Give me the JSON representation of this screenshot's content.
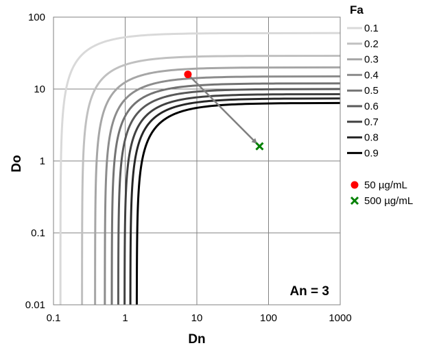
{
  "chart_data": {
    "type": "line",
    "title": "",
    "xlabel": "Dn",
    "ylabel": "Do",
    "xscale": "log",
    "yscale": "log",
    "xlim": [
      0.1,
      1000
    ],
    "ylim": [
      0.01,
      100
    ],
    "x_ticks": [
      "0.1",
      "1",
      "10",
      "100",
      "1000"
    ],
    "y_ticks": [
      "0.01",
      "0.1",
      "1",
      "10",
      "100"
    ],
    "grid": true,
    "annotation": "An = 3",
    "legend": {
      "title": "Fa",
      "placement": "right",
      "curves": [
        "0.1",
        "0.2",
        "0.3",
        "0.4",
        "0.5",
        "0.6",
        "0.7",
        "0.8",
        "0.9"
      ],
      "points": [
        "50 µg/mL",
        "500 µg/mL"
      ]
    },
    "series": [
      {
        "name": "0.1",
        "fa": 0.1,
        "color": "#d9d9d9",
        "x_asymptote": 0.125,
        "y_asymptote": 60
      },
      {
        "name": "0.2",
        "fa": 0.2,
        "color": "#c0c0c0",
        "x_asymptote": 0.25,
        "y_asymptote": 29
      },
      {
        "name": "0.3",
        "fa": 0.3,
        "color": "#a6a6a6",
        "x_asymptote": 0.38,
        "y_asymptote": 20
      },
      {
        "name": "0.4",
        "fa": 0.4,
        "color": "#8c8c8c",
        "x_asymptote": 0.52,
        "y_asymptote": 15
      },
      {
        "name": "0.5",
        "fa": 0.5,
        "color": "#737373",
        "x_asymptote": 0.65,
        "y_asymptote": 12
      },
      {
        "name": "0.6",
        "fa": 0.6,
        "color": "#595959",
        "x_asymptote": 0.8,
        "y_asymptote": 10
      },
      {
        "name": "0.7",
        "fa": 0.7,
        "color": "#404040",
        "x_asymptote": 0.98,
        "y_asymptote": 8.5
      },
      {
        "name": "0.8",
        "fa": 0.8,
        "color": "#262626",
        "x_asymptote": 1.18,
        "y_asymptote": 7.4
      },
      {
        "name": "0.9",
        "fa": 0.9,
        "color": "#000000",
        "x_asymptote": 1.45,
        "y_asymptote": 6.4
      }
    ],
    "points": [
      {
        "name": "50 µg/mL",
        "x": 7.5,
        "y": 16,
        "marker": "circle",
        "color": "#ff0000"
      },
      {
        "name": "500 µg/mL",
        "x": 75,
        "y": 1.6,
        "marker": "x",
        "color": "#008000"
      }
    ],
    "arrow": {
      "from": [
        7.5,
        16
      ],
      "to": [
        75,
        1.6
      ],
      "color": "#808080"
    }
  }
}
